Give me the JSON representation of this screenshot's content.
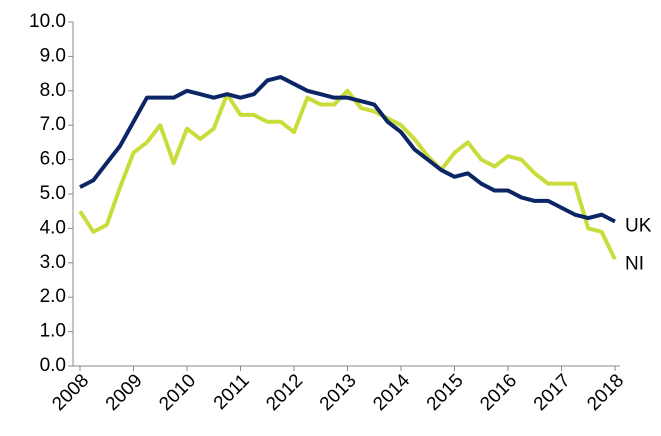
{
  "chart_data": {
    "type": "line",
    "categories": [
      "2008",
      null,
      null,
      null,
      "2009",
      null,
      null,
      null,
      "2010",
      null,
      null,
      null,
      "2011",
      null,
      null,
      null,
      "2012",
      null,
      null,
      null,
      "2013",
      null,
      null,
      null,
      "2014",
      null,
      null,
      null,
      "2015",
      null,
      null,
      null,
      "2016",
      null,
      null,
      null,
      "2017",
      null,
      null,
      null,
      "2018"
    ],
    "series": [
      {
        "name": "UK",
        "color": "#0b2565",
        "values": [
          5.2,
          5.4,
          5.9,
          6.4,
          7.1,
          7.8,
          7.8,
          7.8,
          8.0,
          7.9,
          7.8,
          7.9,
          7.8,
          7.9,
          8.3,
          8.4,
          8.2,
          8.0,
          7.9,
          7.8,
          7.8,
          7.7,
          7.6,
          7.1,
          6.8,
          6.3,
          6.0,
          5.7,
          5.5,
          5.6,
          5.3,
          5.1,
          5.1,
          4.9,
          4.8,
          4.8,
          4.6,
          4.4,
          4.3,
          4.4,
          4.2
        ]
      },
      {
        "name": "NI",
        "color": "#c9dc3a",
        "values": [
          4.5,
          3.9,
          4.1,
          5.2,
          6.2,
          6.5,
          7.0,
          5.9,
          6.9,
          6.6,
          6.9,
          7.9,
          7.3,
          7.3,
          7.1,
          7.1,
          6.8,
          7.8,
          7.6,
          7.6,
          8.0,
          7.5,
          7.4,
          7.2,
          7.0,
          6.6,
          6.1,
          5.7,
          6.2,
          6.5,
          6.0,
          5.8,
          6.1,
          6.0,
          5.6,
          5.3,
          5.3,
          5.3,
          4.0,
          3.9,
          3.1
        ]
      }
    ],
    "ylim": [
      0,
      10
    ],
    "yticks": [
      {
        "value": 0,
        "label": "0.0"
      },
      {
        "value": 1,
        "label": "1.0"
      },
      {
        "value": 2,
        "label": "2.0"
      },
      {
        "value": 3,
        "label": "3.0"
      },
      {
        "value": 4,
        "label": "4.0"
      },
      {
        "value": 5,
        "label": "5.0"
      },
      {
        "value": 6,
        "label": "6.0"
      },
      {
        "value": 7,
        "label": "7.0"
      },
      {
        "value": 8,
        "label": "8.0"
      },
      {
        "value": 9,
        "label": "9.0"
      },
      {
        "value": 10,
        "label": "10.0"
      }
    ],
    "grid": false
  }
}
